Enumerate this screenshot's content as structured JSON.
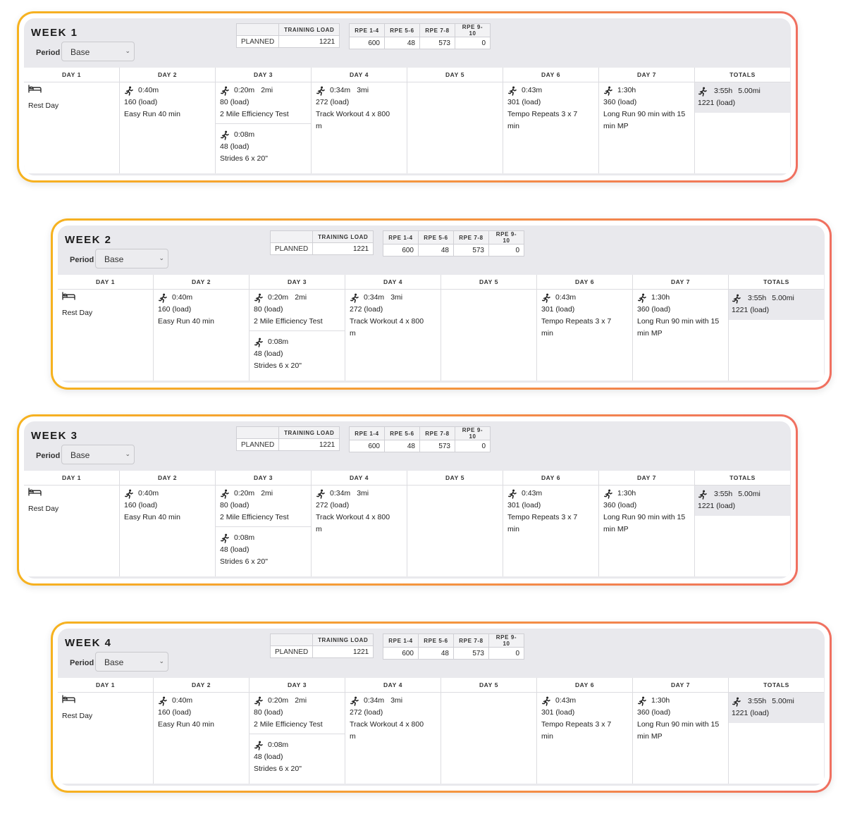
{
  "common": {
    "period_label": "Period",
    "period_value": "Base",
    "load_header": "TRAINING LOAD",
    "planned_label": "PLANNED",
    "planned_value": "1221",
    "rpe_headers": [
      "RPE 1-4",
      "RPE 5-6",
      "RPE 7-8",
      "RPE 9-10"
    ],
    "rpe_values": [
      "600",
      "48",
      "573",
      "0"
    ],
    "day_headers": [
      "DAY 1",
      "DAY 2",
      "DAY 3",
      "DAY 4",
      "DAY 5",
      "DAY 6",
      "DAY 7",
      "TOTALS"
    ],
    "rest_day": "Rest Day",
    "workouts": {
      "day2": {
        "duration": "0:40m",
        "load": "160 (load)",
        "title": "Easy Run 40 min"
      },
      "day3a": {
        "duration": "0:20m",
        "distance": "2mi",
        "load": "80 (load)",
        "title": "2 Mile Efficiency Test"
      },
      "day3b": {
        "duration": "0:08m",
        "load": "48 (load)",
        "title": "Strides 6 x 20\""
      },
      "day4": {
        "duration": "0:34m",
        "distance": "3mi",
        "load": "272 (load)",
        "title_line1": "Track Workout 4 x 800",
        "title_line2": "m"
      },
      "day6": {
        "duration": "0:43m",
        "load": "301 (load)",
        "title_line1": "Tempo Repeats 3 x 7",
        "title_line2": "min"
      },
      "day7": {
        "duration": "1:30h",
        "load": "360 (load)",
        "title_line1": "Long Run 90 min with 15",
        "title_line2": "min MP"
      }
    },
    "totals": {
      "duration": "3:55h",
      "distance": "5.00mi",
      "load": "1221 (load)"
    }
  },
  "weeks": [
    {
      "title": "WEEK 1"
    },
    {
      "title": "WEEK 2"
    },
    {
      "title": "WEEK 3"
    },
    {
      "title": "WEEK 4"
    }
  ]
}
